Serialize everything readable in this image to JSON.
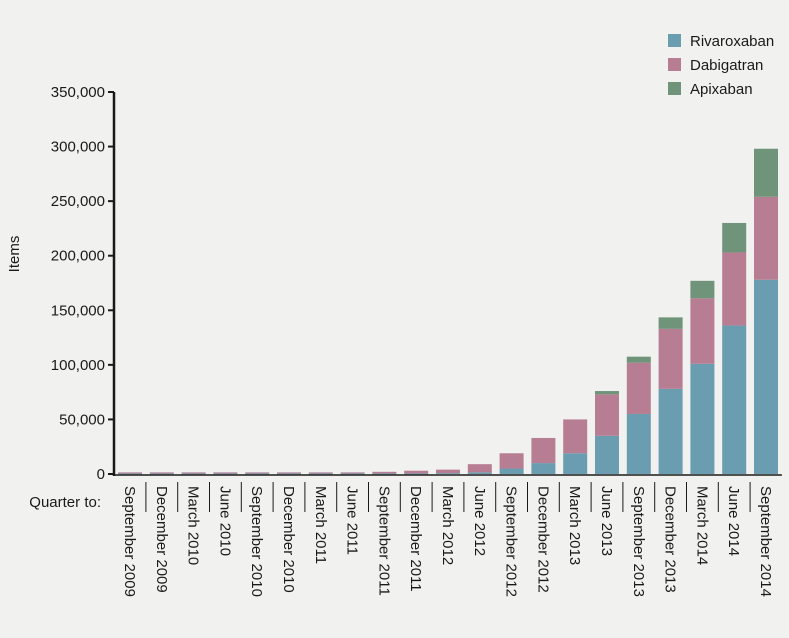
{
  "chart_data": {
    "type": "bar",
    "stacked": true,
    "ylabel": "Items",
    "xlabel": "Quarter to:",
    "ylim": [
      0,
      350000
    ],
    "yticks": [
      0,
      50000,
      100000,
      150000,
      200000,
      250000,
      300000,
      350000
    ],
    "ytick_labels": [
      "0",
      "50,000",
      "100,000",
      "150,000",
      "200,000",
      "250,000",
      "300,000",
      "350,000"
    ],
    "legend_position": "top-right",
    "grid": false,
    "categories": [
      "September 2009",
      "December 2009",
      "March 2010",
      "June 2010",
      "September 2010",
      "December 2010",
      "March 2011",
      "June 2011",
      "September 2011",
      "December 2011",
      "March 2012",
      "June 2012",
      "September 2012",
      "December 2012",
      "March 2013",
      "June 2013",
      "September 2013",
      "December 2013",
      "March 2014",
      "June 2014",
      "September 2014"
    ],
    "series": [
      {
        "name": "Rivaroxaban",
        "color": "#6a9db0",
        "values": [
          500,
          500,
          500,
          500,
          500,
          500,
          500,
          500,
          500,
          500,
          800,
          1500,
          5000,
          10000,
          19000,
          35000,
          55000,
          78000,
          101000,
          136000,
          178000
        ]
      },
      {
        "name": "Dabigatran",
        "color": "#b67d93",
        "values": [
          1000,
          1000,
          1000,
          1000,
          1000,
          1000,
          1000,
          1000,
          1500,
          2500,
          3200,
          7500,
          14000,
          23000,
          31000,
          38000,
          47000,
          55000,
          60000,
          67000,
          76000
        ]
      },
      {
        "name": "Apixaban",
        "color": "#6f947a",
        "values": [
          0,
          0,
          0,
          0,
          0,
          0,
          0,
          0,
          0,
          0,
          0,
          0,
          0,
          0,
          0,
          3000,
          5500,
          10500,
          16000,
          27000,
          44000
        ]
      }
    ]
  }
}
